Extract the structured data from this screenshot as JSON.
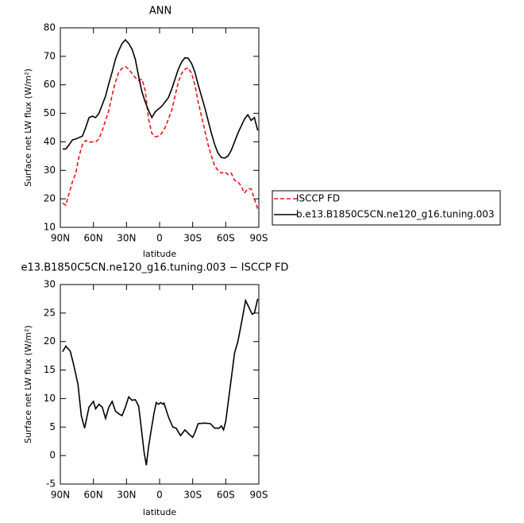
{
  "chart_data": [
    {
      "type": "line",
      "title": "ANN",
      "x_label": "latitude",
      "y_label": "Surface net LW flux (W/m²)",
      "xlim": [
        90,
        -90
      ],
      "xticks": [
        {
          "value": 90,
          "label": "90N"
        },
        {
          "value": 60,
          "label": "60N"
        },
        {
          "value": 30,
          "label": "30N"
        },
        0,
        {
          "value": -30,
          "label": "30S"
        },
        {
          "value": -60,
          "label": "60S"
        },
        {
          "value": -90,
          "label": "90S"
        }
      ],
      "ylim": [
        10,
        80
      ],
      "yticks": [
        10,
        20,
        30,
        40,
        50,
        60,
        70,
        80
      ],
      "legend": "right",
      "x": [
        88,
        85,
        82,
        79,
        76,
        73,
        70,
        67,
        64,
        61,
        58,
        55,
        52,
        49,
        46,
        43,
        40,
        37,
        34,
        31,
        28,
        25,
        22,
        19,
        16,
        13,
        10,
        7,
        4,
        1,
        -2,
        -5,
        -8,
        -11,
        -14,
        -17,
        -20,
        -23,
        -26,
        -29,
        -32,
        -35,
        -38,
        -41,
        -44,
        -47,
        -50,
        -53,
        -56,
        -59,
        -62,
        -65,
        -68,
        -71,
        -74,
        -77,
        -80,
        -83,
        -86,
        -89
      ],
      "series": [
        {
          "name": "ISCCP FD",
          "color": "#e8141b",
          "line_style": "dashed",
          "values": [
            18.5,
            17.8,
            22,
            26,
            29,
            35,
            39,
            40.5,
            39.8,
            40,
            40,
            41,
            44,
            47.5,
            51,
            56.5,
            61,
            64.5,
            65.8,
            66.4,
            65.5,
            64,
            62.5,
            61.5,
            62,
            58,
            48,
            43,
            41.8,
            42,
            43,
            45,
            48,
            51,
            56,
            61,
            64,
            65.5,
            66,
            64,
            60,
            54,
            49,
            44,
            39,
            35,
            31.5,
            30,
            29,
            29.5,
            28.5,
            29,
            26.5,
            26,
            24.5,
            22,
            23.5,
            23.5,
            20,
            16.5
          ]
        },
        {
          "name": "b.e13.B1850C5CN.ne120_g16.tuning.003",
          "color": "#000000",
          "line_style": "solid",
          "values": [
            37.5,
            37.5,
            39,
            40.7,
            41,
            41.5,
            42,
            45,
            48.5,
            49,
            48.5,
            50,
            53,
            56,
            60.5,
            64.5,
            69,
            72,
            74.5,
            75.8,
            74.5,
            72.5,
            69,
            63,
            57.5,
            54,
            51,
            48.5,
            50.5,
            51.5,
            52.5,
            54,
            55.5,
            58.5,
            62,
            65.5,
            68,
            69.5,
            69.3,
            67.5,
            64.5,
            60,
            56,
            52,
            47.5,
            43,
            39,
            36,
            34.5,
            34.3,
            35,
            37,
            40,
            43,
            45.5,
            48,
            49.5,
            47.5,
            48.5,
            44
          ]
        }
      ]
    },
    {
      "type": "line",
      "title": "e13.B1850C5CN.ne120_g16.tuning.003 − ISCCP FD",
      "x_label": "latitude",
      "y_label": "Surface net LW flux (W/m²)",
      "xlim": [
        90,
        -90
      ],
      "xticks": [
        {
          "value": 90,
          "label": "90N"
        },
        {
          "value": 60,
          "label": "60N"
        },
        {
          "value": 30,
          "label": "30N"
        },
        0,
        {
          "value": -30,
          "label": "30S"
        },
        {
          "value": -60,
          "label": "60S"
        },
        {
          "value": -90,
          "label": "90S"
        }
      ],
      "ylim": [
        -5,
        30
      ],
      "yticks": [
        -5,
        0,
        5,
        10,
        15,
        20,
        25,
        30
      ],
      "x": [
        88,
        85,
        81,
        78,
        74,
        71,
        68,
        64,
        60,
        58,
        55,
        52,
        49,
        46,
        43,
        40,
        36,
        34,
        31,
        28,
        25,
        22,
        19,
        17,
        14,
        12,
        10,
        8,
        5,
        3,
        1,
        -1,
        -3,
        -4,
        -8,
        -12,
        -15,
        -19,
        -23,
        -27,
        -30,
        -32,
        -35,
        -41,
        -46,
        -50,
        -54,
        -56,
        -58,
        -60,
        -64,
        -68,
        -71,
        -74,
        -78,
        -84,
        -86,
        -89
      ],
      "series": [
        {
          "color": "#000000",
          "line_style": "solid",
          "values": [
            18.2,
            19.2,
            18.3,
            16,
            12.5,
            7,
            4.8,
            8.5,
            9.5,
            8.2,
            9,
            8.5,
            6.5,
            8.5,
            9.5,
            7.8,
            7.2,
            7,
            8.5,
            10.3,
            9.7,
            9.8,
            8.7,
            5.5,
            0.5,
            -1.7,
            1.5,
            4,
            7.5,
            9.3,
            9,
            9.3,
            9,
            9.2,
            6.8,
            5,
            4.8,
            3.5,
            4.5,
            3.7,
            3.2,
            4,
            5.6,
            5.7,
            5.6,
            4.8,
            4.8,
            5.2,
            4.5,
            6,
            12,
            18,
            20,
            23,
            27.2,
            24.8,
            25,
            27.5
          ]
        }
      ]
    }
  ]
}
